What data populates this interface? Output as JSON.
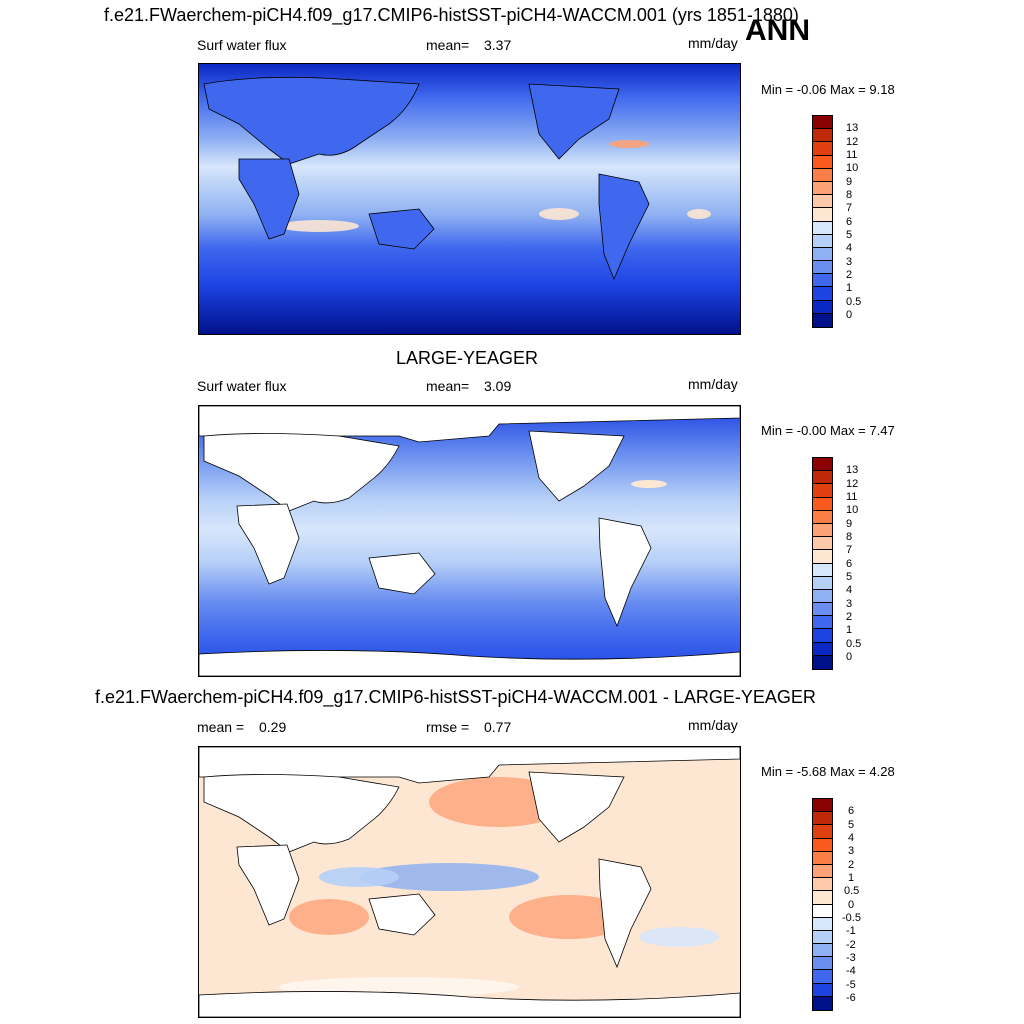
{
  "header": {
    "title": "f.e21.FWaerchem-piCH4.f09_g17.CMIP6-histSST-piCH4-WACCM.001 (yrs 1851-1880)",
    "season": "ANN"
  },
  "chart_data": [
    {
      "type": "heatmap",
      "title": "f.e21.FWaerchem-piCH4.f09_g17.CMIP6-histSST-piCH4-WACCM.001 (yrs 1851-1880)",
      "variable": "Surf water flux",
      "mean_label": "mean=",
      "mean": "3.37",
      "units": "mm/day",
      "minmax": "Min =  -0.06 Max =   9.18",
      "min": -0.06,
      "max": 9.18,
      "colorbar": {
        "labels": [
          "13",
          "12",
          "11",
          "10",
          "9",
          "8",
          "7",
          "6",
          "5",
          "4",
          "3",
          "2",
          "1",
          "0.5",
          "0"
        ],
        "colors": [
          "#8b0000",
          "#c0280a",
          "#e0400f",
          "#fa5a1e",
          "#fb7d47",
          "#fca277",
          "#fdc9a8",
          "#fde6d2",
          "#d7e6fb",
          "#b5cff7",
          "#8fb0f2",
          "#6a8ff0",
          "#3f68ee",
          "#1d43e3",
          "#0a28c4",
          "#00118c"
        ]
      }
    },
    {
      "type": "heatmap",
      "title": "LARGE-YEAGER",
      "variable": "Surf water flux",
      "mean_label": "mean=",
      "mean": "3.09",
      "units": "mm/day",
      "minmax": "Min =  -0.00 Max =   7.47",
      "min": -0.0,
      "max": 7.47,
      "colorbar": {
        "labels": [
          "13",
          "12",
          "11",
          "10",
          "9",
          "8",
          "7",
          "6",
          "5",
          "4",
          "3",
          "2",
          "1",
          "0.5",
          "0"
        ],
        "colors": [
          "#8b0000",
          "#c0280a",
          "#e0400f",
          "#fa5a1e",
          "#fb7d47",
          "#fca277",
          "#fdc9a8",
          "#fde6d2",
          "#d7e6fb",
          "#b5cff7",
          "#8fb0f2",
          "#6a8ff0",
          "#3f68ee",
          "#1d43e3",
          "#0a28c4",
          "#00118c"
        ]
      }
    },
    {
      "type": "heatmap",
      "title": "f.e21.FWaerchem-piCH4.f09_g17.CMIP6-histSST-piCH4-WACCM.001 - LARGE-YEAGER",
      "mean_label": "mean =",
      "mean": "0.29",
      "rmse_label": "rmse =",
      "rmse": "0.77",
      "units": "mm/day",
      "minmax": "Min =  -5.68 Max =   4.28",
      "min": -5.68,
      "max": 4.28,
      "colorbar": {
        "labels": [
          "6",
          "5",
          "4",
          "3",
          "2",
          "1",
          "0.5",
          "0",
          "-0.5",
          "-1",
          "-2",
          "-3",
          "-4",
          "-5",
          "-6"
        ],
        "colors": [
          "#8b0000",
          "#c0280a",
          "#e0400f",
          "#fa5a1e",
          "#fb7d47",
          "#fca277",
          "#fdc9a8",
          "#fde6d2",
          "#ffffff",
          "#d7e6fb",
          "#b5cff7",
          "#8fb0f2",
          "#6a8ff0",
          "#3f68ee",
          "#1d43e3",
          "#00118c"
        ]
      }
    }
  ]
}
